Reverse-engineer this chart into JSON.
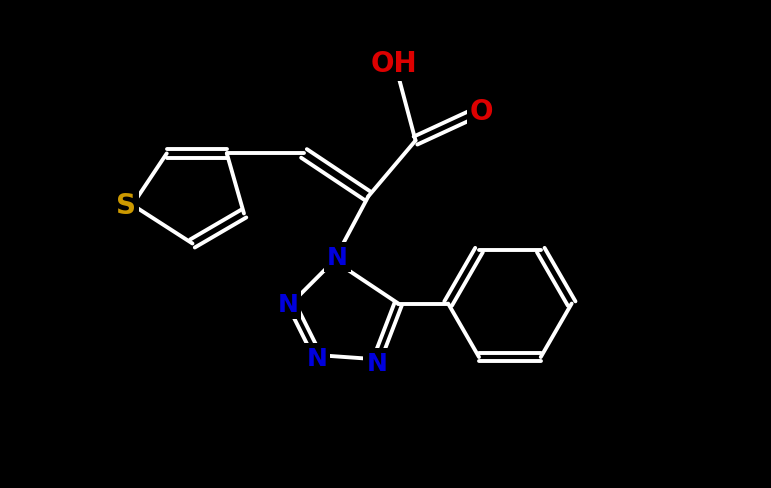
{
  "background_color": "#000000",
  "bond_color": "#ffffff",
  "bond_lw": 2.8,
  "dbo": 0.06,
  "atom_colors": {
    "S": "#cc9900",
    "N": "#0000dd",
    "O": "#dd0000",
    "C": "#ffffff"
  },
  "fs": 18,
  "xlim": [
    -1.0,
    6.5
  ],
  "ylim": [
    -1.5,
    4.2
  ]
}
